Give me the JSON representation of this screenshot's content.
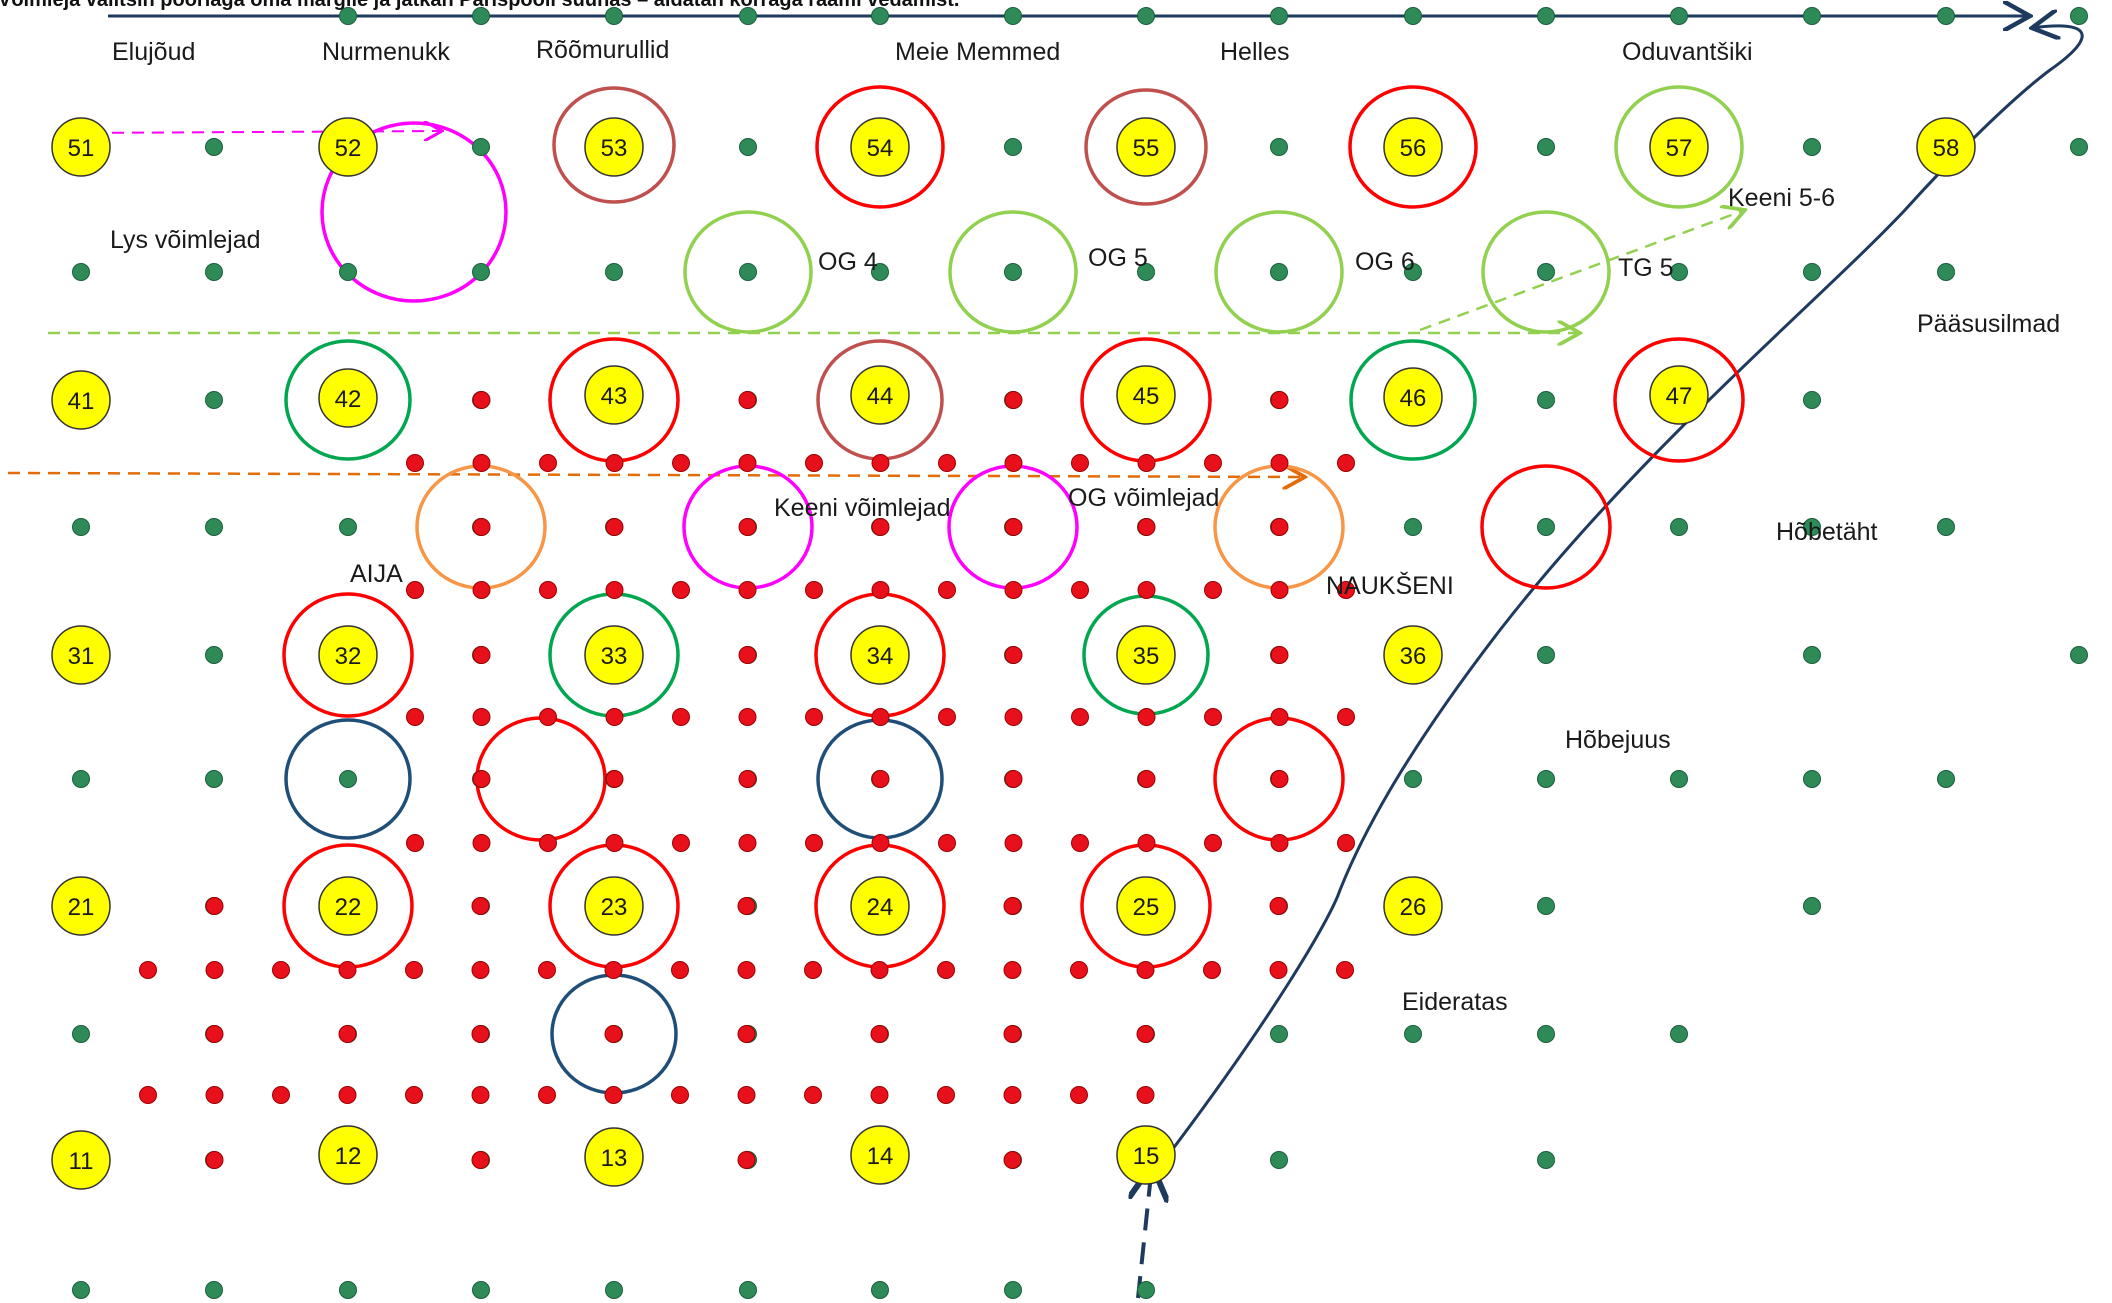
{
  "header_text": "Võimleja valitsin pöörlaga oma märgile ja jätkan Pärispooli suunas – aidatan korraga raami vedamist.",
  "colors": {
    "green_dot": "#2e8b57",
    "red_dot": "#e8101a",
    "marker_fill": "#ffff00",
    "marker_stroke": "#333333",
    "route_line": "#1f3a5f",
    "magenta": "#ff00ff",
    "light_green": "#92d050",
    "dark_green": "#00a650",
    "brown": "#c0504d",
    "red_ring": "#ff0000",
    "blue_ring": "#1f4e79",
    "orange": "#f79646",
    "orange_dash": "#e36c09"
  },
  "group_labels": [
    "Elujõud",
    "Nurmenukk",
    "Rõõmurullid",
    "Meie Memmed",
    "Helles",
    "Oduvantšiki",
    "Lys võimlejad",
    "OG 4",
    "OG 5",
    "OG 6",
    "TG 5",
    "Keeni 5-6",
    "Pääsusilmad",
    "Keeni võimlejad",
    "OG võimlejad",
    "AIJA",
    "NAUKŠENI",
    "Hõbetäht",
    "Hõbejuus",
    "Eideratas"
  ],
  "position_markers": [
    "51",
    "52",
    "53",
    "54",
    "55",
    "56",
    "57",
    "58",
    "41",
    "42",
    "43",
    "44",
    "45",
    "46",
    "47",
    "31",
    "32",
    "33",
    "34",
    "35",
    "36",
    "21",
    "22",
    "23",
    "24",
    "25",
    "26",
    "11",
    "12",
    "13",
    "14",
    "15"
  ]
}
